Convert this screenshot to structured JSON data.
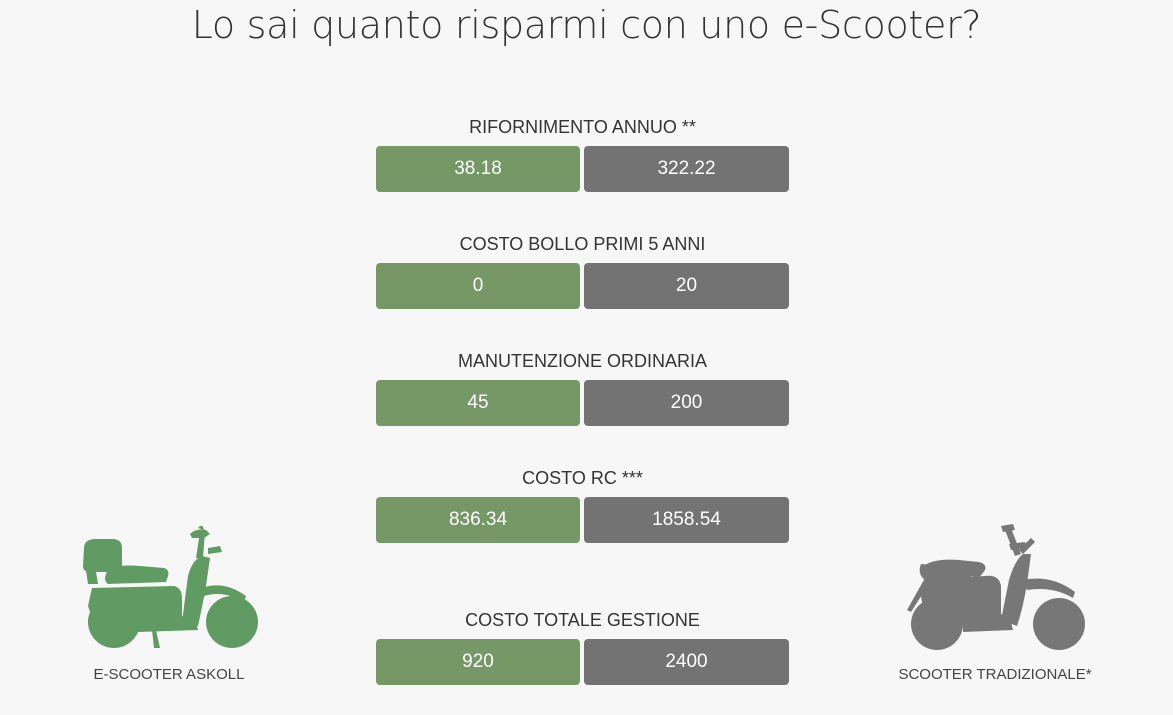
{
  "title": "Lo sai quanto risparmi con uno e-Scooter?",
  "colors": {
    "electric": "#759866",
    "traditional": "#737373",
    "electric_icon": "#5f9b63",
    "traditional_icon": "#777777"
  },
  "rows": [
    {
      "label": "RIFORNIMENTO ANNUO **",
      "electric": "38.18",
      "traditional": "322.22"
    },
    {
      "label": "COSTO BOLLO PRIMI 5 ANNI",
      "electric": "0",
      "traditional": "20"
    },
    {
      "label": "MANUTENZIONE ORDINARIA",
      "electric": "45",
      "traditional": "200"
    },
    {
      "label": "COSTO RC ***",
      "electric": "836.34",
      "traditional": "1858.54"
    },
    {
      "label": "COSTO TOTALE GESTIONE",
      "electric": "920",
      "traditional": "2400"
    }
  ],
  "left_scooter": {
    "label": "E-SCOOTER ASKOLL",
    "icon": "electric-scooter-icon"
  },
  "right_scooter": {
    "label": "SCOOTER TRADIZIONALE*",
    "icon": "traditional-scooter-icon"
  }
}
